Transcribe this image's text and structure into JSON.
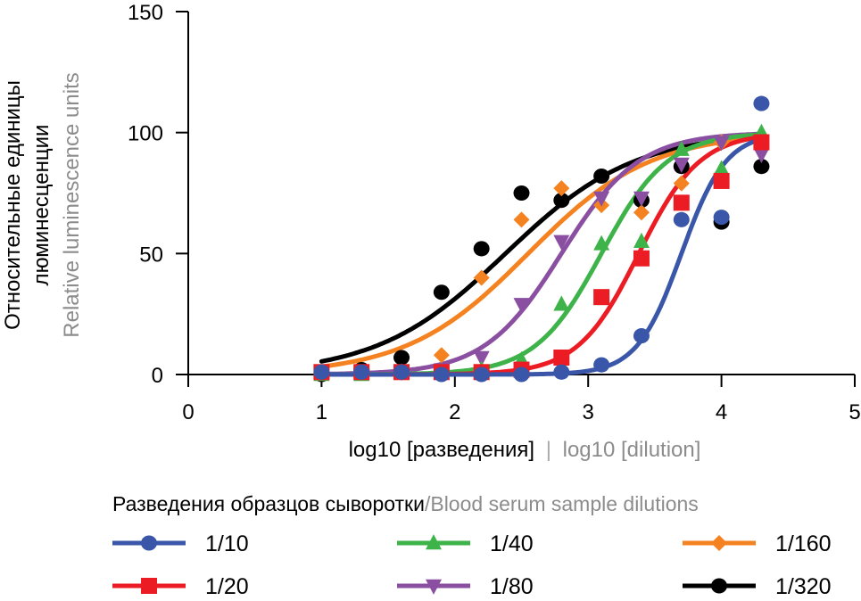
{
  "chart_data": {
    "type": "scatter",
    "title": "",
    "xlabel": {
      "primary": "log10 [разведения]",
      "separator": "|",
      "secondary": "log10 [dilution]"
    },
    "ylabel": {
      "line1": "Относительные единицы",
      "line2": "люминесценции",
      "secondary": "Relative luminescence units"
    },
    "xlim": [
      0,
      5
    ],
    "ylim": [
      0,
      150
    ],
    "xticks": [
      "0",
      "1",
      "2",
      "3",
      "4",
      "5"
    ],
    "yticks": [
      "0",
      "50",
      "100",
      "150"
    ],
    "grid": false,
    "legend": {
      "title_primary": "Разведения образцов сыворотки",
      "title_separator": "/",
      "title_secondary": "Blood serum sample dilutions",
      "placement": "bottom"
    },
    "x": [
      1.0,
      1.3,
      1.6,
      1.9,
      2.2,
      2.5,
      2.8,
      3.1,
      3.4,
      3.7,
      4.0,
      4.3
    ],
    "series": [
      {
        "name": "1/10",
        "color": "#3a56a8",
        "marker": "circle",
        "values": [
          1,
          1,
          1,
          0,
          0,
          0,
          1,
          4,
          16,
          64,
          65,
          112
        ],
        "fit": {
          "bottom": 0,
          "top": 100,
          "ec50": 3.7,
          "hill": 2.6
        }
      },
      {
        "name": "1/20",
        "color": "#ec1c24",
        "marker": "square",
        "values": [
          1,
          1,
          1,
          1,
          1,
          2,
          7,
          32,
          48,
          71,
          80,
          96
        ],
        "fit": {
          "bottom": 0,
          "top": 100,
          "ec50": 3.38,
          "hill": 1.9
        }
      },
      {
        "name": "1/40",
        "color": "#3db34a",
        "marker": "triangle-up",
        "values": [
          0,
          0,
          1,
          1,
          2,
          6,
          29,
          54,
          55,
          93,
          85,
          100
        ],
        "fit": {
          "bottom": 0,
          "top": 100,
          "ec50": 3.1,
          "hill": 1.75
        }
      },
      {
        "name": "1/80",
        "color": "#8a4fa0",
        "marker": "triangle-down",
        "values": [
          1,
          1,
          1,
          2,
          7,
          29,
          55,
          73,
          73,
          87,
          96,
          91
        ],
        "fit": {
          "bottom": 0,
          "top": 100,
          "ec50": 2.8,
          "hill": 1.5
        }
      },
      {
        "name": "1/160",
        "color": "#f58220",
        "marker": "diamond",
        "values": [
          1,
          1,
          1,
          8,
          40,
          64,
          77,
          70,
          67,
          79,
          96,
          95
        ],
        "fit": {
          "bottom": 0,
          "top": 100,
          "ec50": 2.55,
          "hill": 0.95
        }
      },
      {
        "name": "1/320",
        "color": "#000000",
        "marker": "circle",
        "values": [
          0,
          2,
          7,
          34,
          52,
          75,
          72,
          82,
          72,
          86,
          63,
          86
        ],
        "fit": {
          "bottom": 0,
          "top": 100,
          "ec50": 2.38,
          "hill": 0.9
        }
      }
    ]
  }
}
